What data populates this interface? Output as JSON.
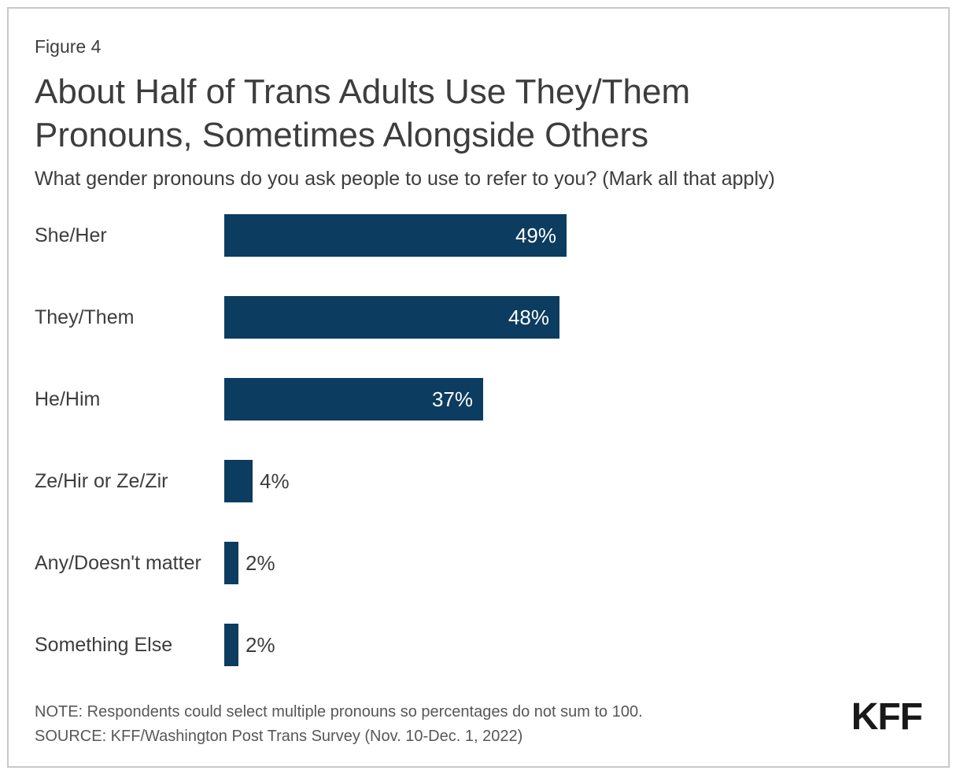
{
  "figure_label": "Figure 4",
  "title": "About Half of Trans Adults Use They/Them Pronouns, Sometimes Alongside Others",
  "subtitle": "What gender pronouns do you ask people to use to refer to you? (Mark all that apply)",
  "note": "NOTE: Respondents could select multiple pronouns so percentages do not sum to 100.",
  "source": "SOURCE: KFF/Washington Post Trans Survey (Nov. 10-Dec. 1, 2022)",
  "logo_text": "KFF",
  "colors": {
    "bar": "#0c3c5f",
    "title_text": "#3d3d3d",
    "note_text": "#575757",
    "frame_border": "#c9c9c9",
    "value_inside": "#ffffff",
    "value_outside": "#3d3d3d"
  },
  "chart_data": {
    "type": "bar",
    "orientation": "horizontal",
    "title": "About Half of Trans Adults Use They/Them Pronouns, Sometimes Alongside Others",
    "question": "What gender pronouns do you ask people to use to refer to you? (Mark all that apply)",
    "categories": [
      "She/Her",
      "They/Them",
      "He/Him",
      "Ze/Hir or Ze/Zir",
      "Any/Doesn't matter",
      "Something Else"
    ],
    "values": [
      49,
      48,
      37,
      4,
      2,
      2
    ],
    "value_labels": [
      "49%",
      "48%",
      "37%",
      "4%",
      "2%",
      "2%"
    ],
    "xlim": [
      0,
      100
    ],
    "grid": false,
    "legend": false,
    "bar_color": "#0c3c5f"
  }
}
